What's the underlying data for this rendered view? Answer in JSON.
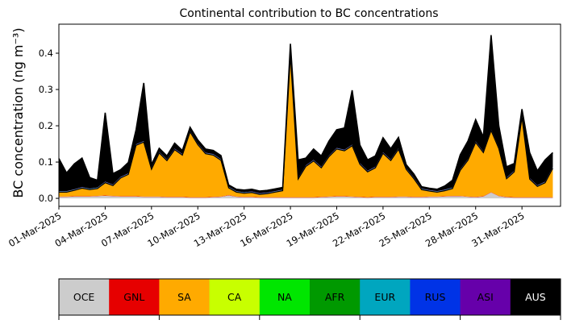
{
  "chart_data": {
    "type": "area",
    "stacked": true,
    "title": "Continental contribution to BC concentrations",
    "ylabel": "BC concentration (ng m⁻³)",
    "xlabel": "",
    "ylim": [
      -0.022,
      0.48
    ],
    "yticks": [
      0.0,
      0.1,
      0.2,
      0.3,
      0.4
    ],
    "ytick_labels": [
      "0.0",
      "0.1",
      "0.2",
      "0.3",
      "0.4"
    ],
    "x_start_day": 1,
    "x_end_day": 33.5,
    "xticks": [
      1,
      4,
      7,
      10,
      13,
      16,
      19,
      22,
      25,
      28,
      31
    ],
    "xtick_labels": [
      "01-Mar-2025",
      "04-Mar-2025",
      "07-Mar-2025",
      "10-Mar-2025",
      "13-Mar-2025",
      "16-Mar-2025",
      "19-Mar-2025",
      "22-Mar-2025",
      "25-Mar-2025",
      "28-Mar-2025",
      "31-Mar-2025"
    ],
    "x": [
      1,
      1.5,
      2,
      2.5,
      3,
      3.5,
      4,
      4.5,
      5,
      5.5,
      6,
      6.5,
      7,
      7.5,
      8,
      8.5,
      9,
      9.5,
      10,
      10.5,
      11,
      11.5,
      12,
      12.5,
      13,
      13.5,
      14,
      14.5,
      15,
      15.5,
      16,
      16.5,
      17,
      17.5,
      18,
      18.5,
      19,
      19.5,
      20,
      20.5,
      21,
      21.5,
      22,
      22.5,
      23,
      23.5,
      24,
      24.5,
      25,
      25.5,
      26,
      26.5,
      27,
      27.5,
      28,
      28.5,
      29,
      29.5,
      30,
      30.5,
      31,
      31.5,
      32,
      32.5,
      33
    ],
    "series": [
      {
        "name": "OCE",
        "color": "#cccccc",
        "values": [
          0.004,
          0.004,
          0.005,
          0.005,
          0.005,
          0.006,
          0.007,
          0.006,
          0.005,
          0.005,
          0.005,
          0.004,
          0.004,
          0.004,
          0.003,
          0.003,
          0.003,
          0.002,
          0.002,
          0.002,
          0.003,
          0.004,
          0.008,
          0.004,
          0.003,
          0.003,
          0.002,
          0.002,
          0.002,
          0.002,
          0.002,
          0.002,
          0.002,
          0.002,
          0.003,
          0.004,
          0.005,
          0.005,
          0.004,
          0.003,
          0.002,
          0.003,
          0.003,
          0.003,
          0.004,
          0.004,
          0.003,
          0.003,
          0.004,
          0.004,
          0.005,
          0.006,
          0.006,
          0.004,
          0.003,
          0.005,
          0.016,
          0.006,
          0.003,
          0.002,
          0.002,
          0.002,
          0.002,
          0.002,
          0.002
        ]
      },
      {
        "name": "GNL",
        "color": "#e60000",
        "values": [
          0.001,
          0.001,
          0.001,
          0.001,
          0.001,
          0.001,
          0.001,
          0.001,
          0.001,
          0.001,
          0.001,
          0.001,
          0.001,
          0.001,
          0.001,
          0.001,
          0.001,
          0.001,
          0.001,
          0.001,
          0.001,
          0.001,
          0.001,
          0.001,
          0.001,
          0.001,
          0.001,
          0.001,
          0.001,
          0.001,
          0.001,
          0.001,
          0.001,
          0.001,
          0.001,
          0.001,
          0.001,
          0.001,
          0.001,
          0.001,
          0.001,
          0.001,
          0.001,
          0.001,
          0.001,
          0.001,
          0.001,
          0.001,
          0.001,
          0.001,
          0.001,
          0.001,
          0.001,
          0.001,
          0.001,
          0.001,
          0.001,
          0.001,
          0.001,
          0.001,
          0.001,
          0.001,
          0.001,
          0.001,
          0.001
        ]
      },
      {
        "name": "SA",
        "color": "#ffaa00",
        "values": [
          0.012,
          0.012,
          0.016,
          0.022,
          0.018,
          0.02,
          0.035,
          0.028,
          0.05,
          0.06,
          0.14,
          0.15,
          0.075,
          0.12,
          0.1,
          0.13,
          0.115,
          0.18,
          0.145,
          0.12,
          0.115,
          0.1,
          0.02,
          0.012,
          0.01,
          0.012,
          0.008,
          0.01,
          0.014,
          0.018,
          0.39,
          0.05,
          0.085,
          0.1,
          0.08,
          0.11,
          0.13,
          0.125,
          0.14,
          0.09,
          0.07,
          0.08,
          0.12,
          0.1,
          0.13,
          0.075,
          0.05,
          0.02,
          0.015,
          0.012,
          0.015,
          0.02,
          0.07,
          0.1,
          0.15,
          0.12,
          0.17,
          0.13,
          0.05,
          0.07,
          0.22,
          0.05,
          0.03,
          0.04,
          0.08
        ]
      },
      {
        "name": "CA",
        "color": "#c8ff00",
        "values": [
          0.0005,
          0.0005,
          0.0005,
          0.0005,
          0.0005,
          0.0005,
          0.0005,
          0.0005,
          0.0005,
          0.0005,
          0.0005,
          0.0005,
          0.0005,
          0.0005,
          0.0005,
          0.0005,
          0.0005,
          0.0005,
          0.0005,
          0.0005,
          0.0005,
          0.0005,
          0.0005,
          0.0005,
          0.0005,
          0.0005,
          0.0005,
          0.0005,
          0.0005,
          0.0005,
          0.0005,
          0.0005,
          0.0005,
          0.0005,
          0.0005,
          0.0005,
          0.0005,
          0.0005,
          0.0005,
          0.0005,
          0.0005,
          0.0005,
          0.0005,
          0.0005,
          0.0005,
          0.0005,
          0.0005,
          0.0005,
          0.0005,
          0.0005,
          0.0005,
          0.0005,
          0.0005,
          0.0005,
          0.0005,
          0.0005,
          0.0005,
          0.0005,
          0.0005,
          0.0005,
          0.0005,
          0.0005,
          0.0005,
          0.0005,
          0.0005
        ]
      },
      {
        "name": "NA",
        "color": "#00e600",
        "values": [
          0.0005,
          0.0005,
          0.0005,
          0.0005,
          0.0005,
          0.0005,
          0.0005,
          0.0005,
          0.0005,
          0.0005,
          0.0005,
          0.0005,
          0.0005,
          0.0005,
          0.0005,
          0.0005,
          0.0005,
          0.0005,
          0.0005,
          0.0005,
          0.0005,
          0.0005,
          0.0005,
          0.0005,
          0.0005,
          0.0005,
          0.0005,
          0.0005,
          0.0005,
          0.0005,
          0.0005,
          0.0005,
          0.0005,
          0.0005,
          0.0005,
          0.0005,
          0.0005,
          0.0005,
          0.0005,
          0.0005,
          0.0005,
          0.0005,
          0.0005,
          0.0005,
          0.0005,
          0.0005,
          0.0005,
          0.0005,
          0.0005,
          0.0005,
          0.0005,
          0.0005,
          0.0005,
          0.0005,
          0.0005,
          0.0005,
          0.0005,
          0.0005,
          0.0005,
          0.0005,
          0.0005,
          0.0005,
          0.0005,
          0.0005,
          0.0005
        ]
      },
      {
        "name": "AFR",
        "color": "#009900",
        "values": [
          0.0005,
          0.0005,
          0.0005,
          0.0005,
          0.0005,
          0.0005,
          0.0005,
          0.0005,
          0.0005,
          0.0005,
          0.0005,
          0.0005,
          0.0005,
          0.0005,
          0.0005,
          0.0005,
          0.0005,
          0.0005,
          0.0005,
          0.0005,
          0.0005,
          0.0005,
          0.0005,
          0.0005,
          0.0005,
          0.0005,
          0.0005,
          0.0005,
          0.0005,
          0.0005,
          0.0005,
          0.0005,
          0.0005,
          0.0005,
          0.0005,
          0.0005,
          0.0005,
          0.0005,
          0.0005,
          0.0005,
          0.0005,
          0.0005,
          0.0005,
          0.0005,
          0.0005,
          0.0005,
          0.0005,
          0.0005,
          0.0005,
          0.0005,
          0.0005,
          0.0005,
          0.0005,
          0.0005,
          0.0005,
          0.0005,
          0.0005,
          0.0005,
          0.0005,
          0.0005,
          0.0005,
          0.0005,
          0.0005,
          0.0005,
          0.0005
        ]
      },
      {
        "name": "EUR",
        "color": "#00a6bf",
        "values": [
          0.0005,
          0.0005,
          0.0005,
          0.0005,
          0.0005,
          0.0005,
          0.0005,
          0.0005,
          0.0005,
          0.0005,
          0.0005,
          0.0005,
          0.0005,
          0.0005,
          0.0005,
          0.0005,
          0.0005,
          0.0005,
          0.0005,
          0.0005,
          0.0005,
          0.0005,
          0.0005,
          0.0005,
          0.0005,
          0.0005,
          0.0005,
          0.0005,
          0.0005,
          0.0005,
          0.0005,
          0.0005,
          0.0005,
          0.0005,
          0.0005,
          0.0005,
          0.0005,
          0.0005,
          0.0005,
          0.0005,
          0.0005,
          0.0005,
          0.0005,
          0.0005,
          0.0005,
          0.0005,
          0.0005,
          0.0005,
          0.0005,
          0.0005,
          0.0005,
          0.0005,
          0.0005,
          0.0005,
          0.0005,
          0.0005,
          0.0005,
          0.0005,
          0.0005,
          0.0005,
          0.0005,
          0.0005,
          0.0005,
          0.0005,
          0.0005
        ]
      },
      {
        "name": "RUS",
        "color": "#0033e6",
        "values": [
          0.0005,
          0.0005,
          0.0005,
          0.0005,
          0.0005,
          0.0005,
          0.0005,
          0.0005,
          0.0005,
          0.0005,
          0.0005,
          0.0005,
          0.0005,
          0.0005,
          0.0005,
          0.0005,
          0.0005,
          0.0005,
          0.0005,
          0.0005,
          0.0005,
          0.0005,
          0.0005,
          0.0005,
          0.0005,
          0.0005,
          0.0005,
          0.0005,
          0.0005,
          0.0005,
          0.0005,
          0.0005,
          0.0005,
          0.0005,
          0.0005,
          0.0005,
          0.0005,
          0.0005,
          0.0005,
          0.0005,
          0.0005,
          0.0005,
          0.0005,
          0.0005,
          0.0005,
          0.0005,
          0.0005,
          0.0005,
          0.0005,
          0.0005,
          0.0005,
          0.0005,
          0.0005,
          0.0005,
          0.0005,
          0.0005,
          0.0005,
          0.0005,
          0.0005,
          0.0005,
          0.0005,
          0.0005,
          0.0005,
          0.0005,
          0.0005
        ]
      },
      {
        "name": "ASI",
        "color": "#6600aa",
        "values": [
          0.0005,
          0.0005,
          0.0005,
          0.0005,
          0.0005,
          0.0005,
          0.0005,
          0.0005,
          0.0005,
          0.0005,
          0.0005,
          0.0005,
          0.0005,
          0.0005,
          0.0005,
          0.0005,
          0.0005,
          0.0005,
          0.0005,
          0.0005,
          0.0005,
          0.0005,
          0.0005,
          0.0005,
          0.0005,
          0.0005,
          0.0005,
          0.0005,
          0.0005,
          0.0005,
          0.0005,
          0.0005,
          0.0005,
          0.0005,
          0.0005,
          0.0005,
          0.0005,
          0.0005,
          0.0005,
          0.0005,
          0.0005,
          0.0005,
          0.0005,
          0.0005,
          0.0005,
          0.0005,
          0.0005,
          0.0005,
          0.0005,
          0.0005,
          0.0005,
          0.0005,
          0.0005,
          0.0005,
          0.0005,
          0.0005,
          0.0005,
          0.0005,
          0.0005,
          0.0005,
          0.0005,
          0.0005,
          0.0005,
          0.0005,
          0.0005
        ]
      },
      {
        "name": "AUS",
        "color": "#000000",
        "values": [
          0.09,
          0.05,
          0.07,
          0.08,
          0.03,
          0.02,
          0.19,
          0.03,
          0.02,
          0.03,
          0.04,
          0.16,
          0.01,
          0.01,
          0.01,
          0.015,
          0.01,
          0.01,
          0.01,
          0.01,
          0.01,
          0.01,
          0.005,
          0.005,
          0.006,
          0.006,
          0.006,
          0.006,
          0.006,
          0.006,
          0.03,
          0.05,
          0.02,
          0.03,
          0.03,
          0.04,
          0.05,
          0.06,
          0.15,
          0.05,
          0.03,
          0.03,
          0.04,
          0.03,
          0.03,
          0.01,
          0.01,
          0.005,
          0.005,
          0.005,
          0.01,
          0.02,
          0.04,
          0.05,
          0.06,
          0.04,
          0.26,
          0.06,
          0.03,
          0.02,
          0.02,
          0.07,
          0.04,
          0.06,
          0.04
        ]
      }
    ],
    "legend": {
      "position": "bottom",
      "labels": [
        "OCE",
        "GNL",
        "SA",
        "CA",
        "NA",
        "AFR",
        "EUR",
        "RUS",
        "ASI",
        "AUS"
      ],
      "colors": [
        "#cccccc",
        "#e60000",
        "#ffaa00",
        "#c8ff00",
        "#00e600",
        "#009900",
        "#00a6bf",
        "#0033e6",
        "#6600aa",
        "#000000"
      ],
      "text_colors": [
        "#000000",
        "#000000",
        "#000000",
        "#000000",
        "#000000",
        "#000000",
        "#000000",
        "#000000",
        "#000000",
        "#ffffff"
      ]
    },
    "grid": false
  }
}
